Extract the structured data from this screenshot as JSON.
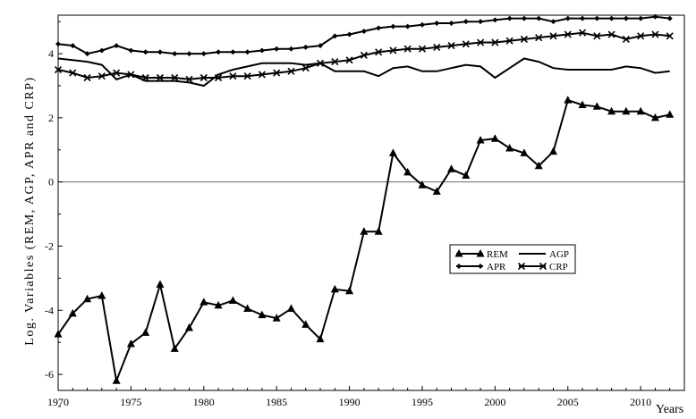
{
  "chart_data": {
    "type": "line",
    "title": "",
    "xlabel": "Years",
    "ylabel": "Log. Variables (REM, AGP, APR and CRP)",
    "xlim": [
      1970,
      2013
    ],
    "ylim": [
      -6.5,
      5.2
    ],
    "xticks": [
      1970,
      1975,
      1980,
      1985,
      1990,
      1995,
      2000,
      2005,
      2010
    ],
    "yticks": [
      -6,
      -4,
      -2,
      0,
      2,
      4
    ],
    "zero_line": true,
    "grid": false,
    "legend_position": "center-right",
    "x": [
      1970,
      1971,
      1972,
      1973,
      1974,
      1975,
      1976,
      1977,
      1978,
      1979,
      1980,
      1981,
      1982,
      1983,
      1984,
      1985,
      1986,
      1987,
      1988,
      1989,
      1990,
      1991,
      1992,
      1993,
      1994,
      1995,
      1996,
      1997,
      1998,
      1999,
      2000,
      2001,
      2002,
      2003,
      2004,
      2005,
      2006,
      2007,
      2008,
      2009,
      2010,
      2011,
      2012
    ],
    "series": [
      {
        "name": "REM",
        "marker": "triangle",
        "values": [
          -4.75,
          -4.1,
          -3.65,
          -3.55,
          -6.2,
          -5.05,
          -4.7,
          -3.2,
          -5.2,
          -4.55,
          -3.75,
          -3.85,
          -3.7,
          -3.95,
          -4.15,
          -4.25,
          -3.95,
          -4.45,
          -4.9,
          -3.35,
          -3.4,
          -1.55,
          -1.55,
          0.9,
          0.3,
          -0.1,
          -0.3,
          0.4,
          0.2,
          1.3,
          1.35,
          1.05,
          0.9,
          0.5,
          0.95,
          2.55,
          2.4,
          2.35,
          2.2,
          2.2,
          2.2,
          2.0,
          2.1
        ]
      },
      {
        "name": "AGP",
        "marker": "none",
        "values": [
          3.85,
          3.8,
          3.75,
          3.65,
          3.2,
          3.35,
          3.15,
          3.15,
          3.15,
          3.1,
          3.0,
          3.35,
          3.5,
          3.6,
          3.7,
          3.7,
          3.7,
          3.65,
          3.7,
          3.45,
          3.45,
          3.45,
          3.3,
          3.55,
          3.6,
          3.45,
          3.45,
          3.55,
          3.65,
          3.6,
          3.25,
          3.55,
          3.85,
          3.75,
          3.55,
          3.5,
          3.5,
          3.5,
          3.5,
          3.6,
          3.55,
          3.4,
          3.45
        ]
      },
      {
        "name": "APR",
        "marker": "diamond",
        "values": [
          4.3,
          4.25,
          4.0,
          4.1,
          4.25,
          4.1,
          4.05,
          4.05,
          4.0,
          4.0,
          4.0,
          4.05,
          4.05,
          4.05,
          4.1,
          4.15,
          4.15,
          4.2,
          4.25,
          4.55,
          4.6,
          4.7,
          4.8,
          4.85,
          4.85,
          4.9,
          4.95,
          4.95,
          5.0,
          5.0,
          5.05,
          5.1,
          5.1,
          5.1,
          5.0,
          5.1,
          5.1,
          5.1,
          5.1,
          5.1,
          5.1,
          5.15,
          5.1
        ]
      },
      {
        "name": "CRP",
        "marker": "x",
        "values": [
          3.5,
          3.4,
          3.25,
          3.3,
          3.4,
          3.35,
          3.25,
          3.25,
          3.25,
          3.2,
          3.25,
          3.25,
          3.3,
          3.3,
          3.35,
          3.4,
          3.45,
          3.55,
          3.7,
          3.75,
          3.8,
          3.95,
          4.05,
          4.1,
          4.15,
          4.15,
          4.2,
          4.25,
          4.3,
          4.35,
          4.35,
          4.4,
          4.45,
          4.5,
          4.55,
          4.6,
          4.65,
          4.55,
          4.6,
          4.45,
          4.55,
          4.6,
          4.55
        ]
      }
    ]
  }
}
